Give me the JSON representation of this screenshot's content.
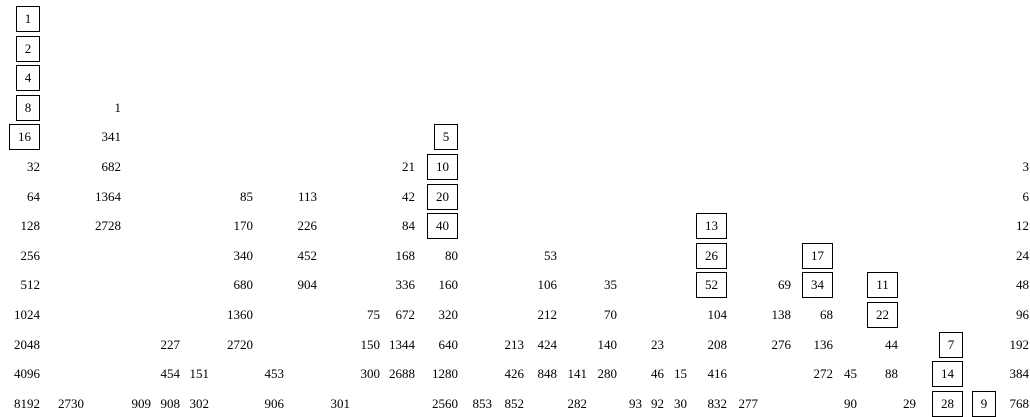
{
  "columns": [
    {
      "values": [
        "1",
        "2",
        "4",
        "8",
        "16",
        "32",
        "64",
        "128",
        "256",
        "512",
        "1024",
        "2048",
        "4096",
        "8192"
      ],
      "boxed": [
        "1",
        "2",
        "4",
        "8",
        "16"
      ]
    },
    {
      "values": [
        "2730"
      ],
      "boxed": []
    },
    {
      "values": [
        "1",
        "341",
        "682",
        "1364",
        "2728"
      ],
      "boxed": []
    },
    {
      "values": [
        "909"
      ],
      "boxed": []
    },
    {
      "values": [
        "227",
        "454",
        "908"
      ],
      "boxed": []
    },
    {
      "values": [
        "151",
        "302"
      ],
      "boxed": []
    },
    {
      "values": [
        "85",
        "170",
        "340",
        "680",
        "1360",
        "2720"
      ],
      "boxed": []
    },
    {
      "values": [
        "453",
        "906"
      ],
      "boxed": []
    },
    {
      "values": [
        "113",
        "226",
        "452",
        "904"
      ],
      "boxed": []
    },
    {
      "values": [
        "301"
      ],
      "boxed": []
    },
    {
      "values": [
        "75",
        "150",
        "300"
      ],
      "boxed": []
    },
    {
      "values": [
        "21",
        "42",
        "84",
        "168",
        "336",
        "672",
        "1344",
        "2688"
      ],
      "boxed": []
    },
    {
      "values": [
        "5",
        "10",
        "20",
        "40",
        "80",
        "160",
        "320",
        "640",
        "1280",
        "2560"
      ],
      "boxed": [
        "5",
        "10",
        "20",
        "40"
      ]
    },
    {
      "values": [
        "853"
      ],
      "boxed": []
    },
    {
      "values": [
        "213",
        "426",
        "852"
      ],
      "boxed": []
    },
    {
      "values": [
        "53",
        "106",
        "212",
        "424",
        "848"
      ],
      "boxed": []
    },
    {
      "values": [
        "141",
        "282"
      ],
      "boxed": []
    },
    {
      "values": [
        "35",
        "70",
        "140",
        "280"
      ],
      "boxed": []
    },
    {
      "values": [
        "93"
      ],
      "boxed": []
    },
    {
      "values": [
        "23",
        "46",
        "92"
      ],
      "boxed": []
    },
    {
      "values": [
        "15",
        "30"
      ],
      "boxed": []
    },
    {
      "values": [
        "13",
        "26",
        "52",
        "104",
        "208",
        "416",
        "832"
      ],
      "boxed": [
        "13",
        "26",
        "52"
      ]
    },
    {
      "values": [
        "277"
      ],
      "boxed": []
    },
    {
      "values": [
        "69",
        "138",
        "276"
      ],
      "boxed": []
    },
    {
      "values": [
        "17",
        "34",
        "68",
        "136",
        "272"
      ],
      "boxed": [
        "17",
        "34"
      ]
    },
    {
      "values": [
        "45",
        "90"
      ],
      "boxed": []
    },
    {
      "values": [
        "11",
        "22",
        "44",
        "88"
      ],
      "boxed": [
        "11",
        "22"
      ]
    },
    {
      "values": [
        "29"
      ],
      "boxed": []
    },
    {
      "values": [
        "7",
        "14",
        "28"
      ],
      "boxed": [
        "7",
        "14",
        "28"
      ]
    },
    {
      "values": [
        "9"
      ],
      "boxed": [
        "9"
      ]
    },
    {
      "values": [
        "3",
        "6",
        "12",
        "24",
        "48",
        "96",
        "192",
        "384",
        "768"
      ],
      "boxed": []
    }
  ]
}
